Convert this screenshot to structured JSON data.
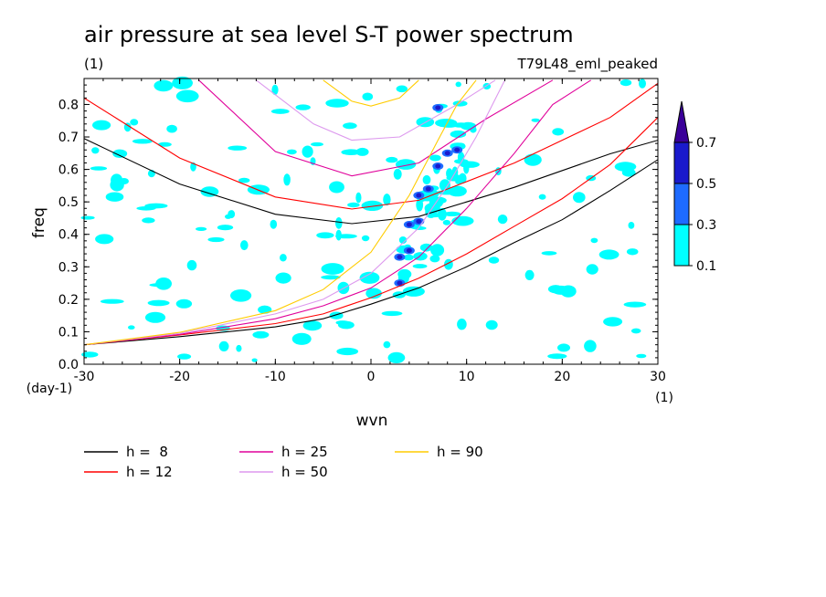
{
  "chart_data": {
    "type": "contour",
    "title": "air pressure at sea level S-T power spectrum",
    "units_label": "(1)",
    "run_label": "T79L48_eml_peaked",
    "xlabel": "wvn",
    "ylabel": "freq",
    "x_units": "(1)",
    "y_units": "(day-1)",
    "xlim": [
      -30,
      30
    ],
    "ylim": [
      0,
      0.88
    ],
    "x_ticks": [
      -30,
      -20,
      -10,
      0,
      10,
      20,
      30
    ],
    "x_tick_labels": [
      "-30",
      "-20",
      "-10",
      "0",
      "10",
      "20",
      "30"
    ],
    "y_ticks": [
      0.0,
      0.1,
      0.2,
      0.3,
      0.4,
      0.5,
      0.6,
      0.7,
      0.8
    ],
    "y_tick_labels": [
      "0.0",
      "0.1",
      "0.2",
      "0.3",
      "0.4",
      "0.5",
      "0.6",
      "0.7",
      "0.8"
    ],
    "colorbar": {
      "levels": [
        "0.1",
        "0.3",
        "0.5",
        "0.7"
      ],
      "colors": [
        "#00ffff",
        "#1e6bff",
        "#1a1acc",
        "#3a0099"
      ]
    },
    "dispersion_curves": [
      {
        "name": "h =  8",
        "color": "#000000",
        "upper": [
          [
            -30,
            0.695
          ],
          [
            -20,
            0.555
          ],
          [
            -10,
            0.462
          ],
          [
            -2,
            0.433
          ],
          [
            5,
            0.455
          ],
          [
            15,
            0.545
          ],
          [
            25,
            0.648
          ],
          [
            30,
            0.69
          ]
        ],
        "lower": [
          [
            -30,
            0.06
          ],
          [
            -20,
            0.085
          ],
          [
            -10,
            0.115
          ],
          [
            -5,
            0.14
          ],
          [
            0,
            0.185
          ],
          [
            5,
            0.235
          ],
          [
            10,
            0.3
          ],
          [
            15,
            0.375
          ],
          [
            20,
            0.445
          ],
          [
            25,
            0.535
          ],
          [
            30,
            0.63
          ]
        ]
      },
      {
        "name": "h = 12",
        "color": "#ff0000",
        "upper": [
          [
            -30,
            0.82
          ],
          [
            -20,
            0.635
          ],
          [
            -10,
            0.515
          ],
          [
            -2,
            0.478
          ],
          [
            5,
            0.505
          ],
          [
            15,
            0.62
          ],
          [
            25,
            0.76
          ],
          [
            30,
            0.865
          ]
        ],
        "lower": [
          [
            -30,
            0.06
          ],
          [
            -20,
            0.09
          ],
          [
            -10,
            0.125
          ],
          [
            -5,
            0.155
          ],
          [
            0,
            0.205
          ],
          [
            5,
            0.265
          ],
          [
            10,
            0.34
          ],
          [
            15,
            0.425
          ],
          [
            20,
            0.51
          ],
          [
            25,
            0.615
          ],
          [
            30,
            0.76
          ]
        ]
      },
      {
        "name": "h = 25",
        "color": "#e0009a",
        "upper": [
          [
            -18,
            0.875
          ],
          [
            -10,
            0.655
          ],
          [
            -2,
            0.58
          ],
          [
            5,
            0.62
          ],
          [
            12,
            0.755
          ],
          [
            19,
            0.875
          ]
        ],
        "lower": [
          [
            -30,
            0.06
          ],
          [
            -20,
            0.092
          ],
          [
            -10,
            0.14
          ],
          [
            -5,
            0.18
          ],
          [
            0,
            0.235
          ],
          [
            5,
            0.33
          ],
          [
            10,
            0.48
          ],
          [
            15,
            0.65
          ],
          [
            19,
            0.8
          ],
          [
            23,
            0.875
          ]
        ]
      },
      {
        "name": "h = 50",
        "color": "#dd99ee",
        "upper": [
          [
            -12,
            0.875
          ],
          [
            -6,
            0.74
          ],
          [
            -2,
            0.69
          ],
          [
            3,
            0.7
          ],
          [
            9,
            0.8
          ],
          [
            13,
            0.875
          ]
        ],
        "lower": [
          [
            -30,
            0.06
          ],
          [
            -20,
            0.095
          ],
          [
            -10,
            0.155
          ],
          [
            -5,
            0.2
          ],
          [
            0,
            0.28
          ],
          [
            5,
            0.42
          ],
          [
            8,
            0.55
          ],
          [
            11,
            0.7
          ],
          [
            14,
            0.875
          ]
        ]
      },
      {
        "name": "h = 90",
        "color": "#ffcc00",
        "upper": [
          [
            -5,
            0.875
          ],
          [
            -2,
            0.81
          ],
          [
            0,
            0.795
          ],
          [
            3,
            0.82
          ],
          [
            5,
            0.875
          ]
        ],
        "lower": [
          [
            -30,
            0.06
          ],
          [
            -20,
            0.098
          ],
          [
            -10,
            0.165
          ],
          [
            -5,
            0.23
          ],
          [
            0,
            0.345
          ],
          [
            4,
            0.52
          ],
          [
            7,
            0.69
          ],
          [
            9,
            0.8
          ],
          [
            11,
            0.875
          ]
        ]
      }
    ]
  },
  "legend": [
    {
      "label": "h =  8",
      "color": "#000000"
    },
    {
      "label": "h = 12",
      "color": "#ff0000"
    },
    {
      "label": "h = 25",
      "color": "#e0009a"
    },
    {
      "label": "h = 50",
      "color": "#dd99ee"
    },
    {
      "label": "h = 90",
      "color": "#ffcc00"
    }
  ]
}
